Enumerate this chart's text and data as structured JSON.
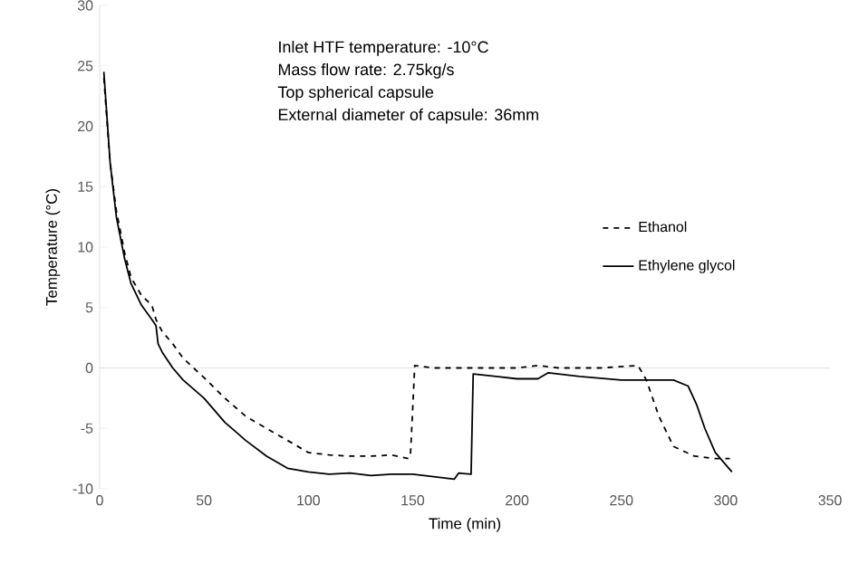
{
  "chart_data": {
    "type": "line",
    "xlabel": "Time (min)",
    "ylabel": "Temperature (°C)",
    "annotations": [
      "Inlet HTF temperature: -10°C",
      "Mass flow rate: 2.75kg/s",
      "Top spherical capsule",
      "External diameter of capsule: 36mm"
    ],
    "xlim": [
      0,
      350
    ],
    "xticks": [
      0,
      50,
      100,
      150,
      200,
      250,
      300,
      350
    ],
    "ylim": [
      -10,
      30
    ],
    "yticks": [
      -10,
      -5,
      0,
      5,
      10,
      15,
      20,
      25,
      30
    ],
    "legend": "right",
    "marker": "none",
    "ref_lines": [
      {
        "axis": "y",
        "value": 0,
        "color": "#d9d9d9"
      }
    ],
    "series": [
      {
        "name": "Ethanol",
        "color": "#000000",
        "line_style": "dashed",
        "x": [
          2,
          5,
          8,
          12,
          15,
          20,
          25,
          27,
          30,
          35,
          40,
          50,
          60,
          70,
          80,
          90,
          100,
          110,
          120,
          130,
          140,
          148,
          149,
          151,
          160,
          180,
          200,
          210,
          220,
          240,
          258,
          262,
          268,
          275,
          285,
          295,
          302
        ],
        "values": [
          24,
          17,
          13,
          9.5,
          7.5,
          6,
          5.2,
          4,
          3,
          2,
          0.8,
          -0.8,
          -2.5,
          -4,
          -5,
          -6,
          -7,
          -7.2,
          -7.3,
          -7.3,
          -7.2,
          -7.5,
          -7,
          0.2,
          0,
          0,
          0,
          0.2,
          0,
          0,
          0.2,
          -1,
          -4,
          -6.5,
          -7.3,
          -7.5,
          -7.5
        ]
      },
      {
        "name": "Ethylene glycol",
        "color": "#000000",
        "line_style": "solid",
        "x": [
          2,
          5,
          8,
          12,
          15,
          20,
          25,
          27,
          28,
          30,
          35,
          40,
          50,
          60,
          70,
          80,
          90,
          100,
          110,
          120,
          130,
          140,
          150,
          160,
          170,
          172,
          178,
          179,
          190,
          200,
          210,
          215,
          230,
          250,
          275,
          282,
          286,
          290,
          295,
          300,
          303
        ],
        "values": [
          24.5,
          17,
          12.5,
          9,
          7,
          5.2,
          4,
          3.5,
          2,
          1.3,
          0,
          -1,
          -2.5,
          -4.5,
          -6,
          -7.3,
          -8.3,
          -8.6,
          -8.8,
          -8.7,
          -8.9,
          -8.8,
          -8.8,
          -9,
          -9.2,
          -8.7,
          -8.8,
          -0.5,
          -0.7,
          -0.9,
          -0.9,
          -0.4,
          -0.7,
          -1,
          -1,
          -1.5,
          -3,
          -5,
          -7,
          -8,
          -8.6
        ]
      }
    ]
  }
}
